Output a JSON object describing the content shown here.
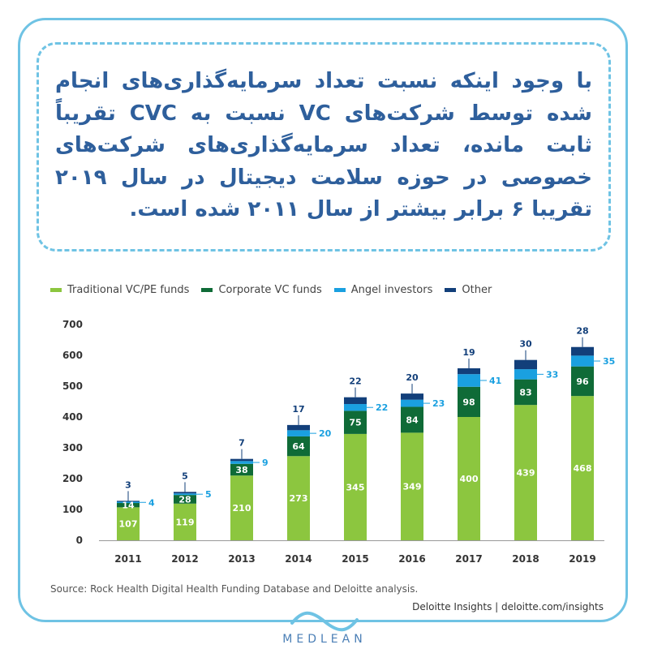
{
  "headline": "با وجود اینکه نسبت تعداد سرمایه‌گذاری‌های انجام شده توسط شرکت‌های VC نسبت به CVC تقریباً ثابت مانده، تعداد سرمایه‌گذاری‌های شرکت‌های خصوصی در حوزه سلامت دیجیتال در سال ۲۰۱۹ تقریبا ۶ برابر بیشتر از سال ۲۰۱۱ شده است.",
  "colors": {
    "frame": "#6fc3e4",
    "headline": "#2e5f9c",
    "traditional": "#8cc63f",
    "corporate": "#0f6b37",
    "angel": "#1aa0e0",
    "other": "#123f7a"
  },
  "chart_data": {
    "type": "bar",
    "stacked": true,
    "categories": [
      "2011",
      "2012",
      "2013",
      "2014",
      "2015",
      "2016",
      "2017",
      "2018",
      "2019"
    ],
    "series": [
      {
        "name": "Traditional VC/PE funds",
        "color": "#8cc63f",
        "values": [
          107,
          119,
          210,
          273,
          345,
          349,
          400,
          439,
          468
        ]
      },
      {
        "name": "Corporate VC funds",
        "color": "#0f6b37",
        "values": [
          14,
          28,
          38,
          64,
          75,
          84,
          98,
          83,
          96
        ]
      },
      {
        "name": "Angel investors",
        "color": "#1aa0e0",
        "values": [
          4,
          5,
          9,
          20,
          22,
          23,
          41,
          33,
          35
        ]
      },
      {
        "name": "Other",
        "color": "#123f7a",
        "values": [
          3,
          5,
          7,
          17,
          22,
          20,
          19,
          30,
          28
        ]
      }
    ],
    "yticks": [
      "0",
      "100",
      "200",
      "300",
      "400",
      "500",
      "600",
      "700"
    ],
    "ylim": [
      0,
      700
    ],
    "legend_position": "top-left",
    "grid": false
  },
  "source": "Source: Rock Health Digital Health Funding Database and Deloitte analysis.",
  "credit": "Deloitte Insights | deloitte.com/insights",
  "brand": "MEDLEAN"
}
